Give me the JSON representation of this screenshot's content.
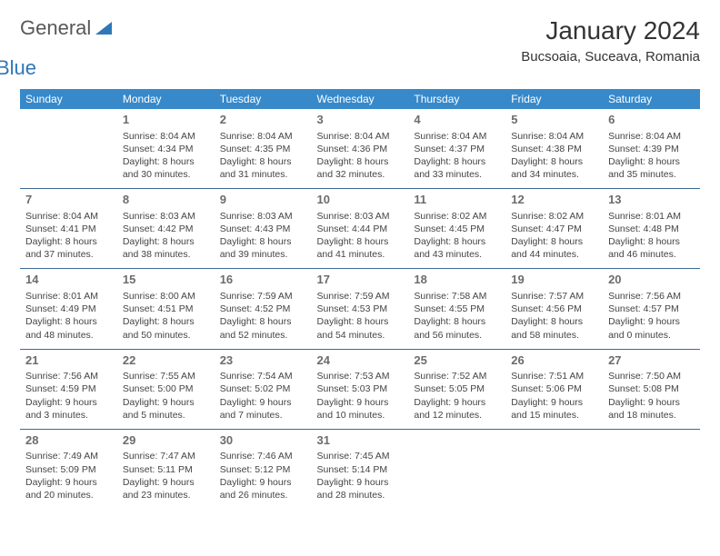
{
  "logo": {
    "word1": "General",
    "word2": "Blue"
  },
  "title": "January 2024",
  "subtitle": "Bucsoaia, Suceava, Romania",
  "colors": {
    "header_bg": "#3789ca",
    "header_text": "#ffffff",
    "rule": "#3d6a97",
    "daynum": "#6a6c6e",
    "body_text": "#444444",
    "logo_gray": "#56585a",
    "logo_blue": "#2e77b8"
  },
  "weekdays": [
    "Sunday",
    "Monday",
    "Tuesday",
    "Wednesday",
    "Thursday",
    "Friday",
    "Saturday"
  ],
  "weeks": [
    [
      null,
      {
        "n": "1",
        "sr": "8:04 AM",
        "ss": "4:34 PM",
        "dl": "8 hours and 30 minutes."
      },
      {
        "n": "2",
        "sr": "8:04 AM",
        "ss": "4:35 PM",
        "dl": "8 hours and 31 minutes."
      },
      {
        "n": "3",
        "sr": "8:04 AM",
        "ss": "4:36 PM",
        "dl": "8 hours and 32 minutes."
      },
      {
        "n": "4",
        "sr": "8:04 AM",
        "ss": "4:37 PM",
        "dl": "8 hours and 33 minutes."
      },
      {
        "n": "5",
        "sr": "8:04 AM",
        "ss": "4:38 PM",
        "dl": "8 hours and 34 minutes."
      },
      {
        "n": "6",
        "sr": "8:04 AM",
        "ss": "4:39 PM",
        "dl": "8 hours and 35 minutes."
      }
    ],
    [
      {
        "n": "7",
        "sr": "8:04 AM",
        "ss": "4:41 PM",
        "dl": "8 hours and 37 minutes."
      },
      {
        "n": "8",
        "sr": "8:03 AM",
        "ss": "4:42 PM",
        "dl": "8 hours and 38 minutes."
      },
      {
        "n": "9",
        "sr": "8:03 AM",
        "ss": "4:43 PM",
        "dl": "8 hours and 39 minutes."
      },
      {
        "n": "10",
        "sr": "8:03 AM",
        "ss": "4:44 PM",
        "dl": "8 hours and 41 minutes."
      },
      {
        "n": "11",
        "sr": "8:02 AM",
        "ss": "4:45 PM",
        "dl": "8 hours and 43 minutes."
      },
      {
        "n": "12",
        "sr": "8:02 AM",
        "ss": "4:47 PM",
        "dl": "8 hours and 44 minutes."
      },
      {
        "n": "13",
        "sr": "8:01 AM",
        "ss": "4:48 PM",
        "dl": "8 hours and 46 minutes."
      }
    ],
    [
      {
        "n": "14",
        "sr": "8:01 AM",
        "ss": "4:49 PM",
        "dl": "8 hours and 48 minutes."
      },
      {
        "n": "15",
        "sr": "8:00 AM",
        "ss": "4:51 PM",
        "dl": "8 hours and 50 minutes."
      },
      {
        "n": "16",
        "sr": "7:59 AM",
        "ss": "4:52 PM",
        "dl": "8 hours and 52 minutes."
      },
      {
        "n": "17",
        "sr": "7:59 AM",
        "ss": "4:53 PM",
        "dl": "8 hours and 54 minutes."
      },
      {
        "n": "18",
        "sr": "7:58 AM",
        "ss": "4:55 PM",
        "dl": "8 hours and 56 minutes."
      },
      {
        "n": "19",
        "sr": "7:57 AM",
        "ss": "4:56 PM",
        "dl": "8 hours and 58 minutes."
      },
      {
        "n": "20",
        "sr": "7:56 AM",
        "ss": "4:57 PM",
        "dl": "9 hours and 0 minutes."
      }
    ],
    [
      {
        "n": "21",
        "sr": "7:56 AM",
        "ss": "4:59 PM",
        "dl": "9 hours and 3 minutes."
      },
      {
        "n": "22",
        "sr": "7:55 AM",
        "ss": "5:00 PM",
        "dl": "9 hours and 5 minutes."
      },
      {
        "n": "23",
        "sr": "7:54 AM",
        "ss": "5:02 PM",
        "dl": "9 hours and 7 minutes."
      },
      {
        "n": "24",
        "sr": "7:53 AM",
        "ss": "5:03 PM",
        "dl": "9 hours and 10 minutes."
      },
      {
        "n": "25",
        "sr": "7:52 AM",
        "ss": "5:05 PM",
        "dl": "9 hours and 12 minutes."
      },
      {
        "n": "26",
        "sr": "7:51 AM",
        "ss": "5:06 PM",
        "dl": "9 hours and 15 minutes."
      },
      {
        "n": "27",
        "sr": "7:50 AM",
        "ss": "5:08 PM",
        "dl": "9 hours and 18 minutes."
      }
    ],
    [
      {
        "n": "28",
        "sr": "7:49 AM",
        "ss": "5:09 PM",
        "dl": "9 hours and 20 minutes."
      },
      {
        "n": "29",
        "sr": "7:47 AM",
        "ss": "5:11 PM",
        "dl": "9 hours and 23 minutes."
      },
      {
        "n": "30",
        "sr": "7:46 AM",
        "ss": "5:12 PM",
        "dl": "9 hours and 26 minutes."
      },
      {
        "n": "31",
        "sr": "7:45 AM",
        "ss": "5:14 PM",
        "dl": "9 hours and 28 minutes."
      },
      null,
      null,
      null
    ]
  ],
  "labels": {
    "sunrise": "Sunrise:",
    "sunset": "Sunset:",
    "daylight": "Daylight:"
  }
}
